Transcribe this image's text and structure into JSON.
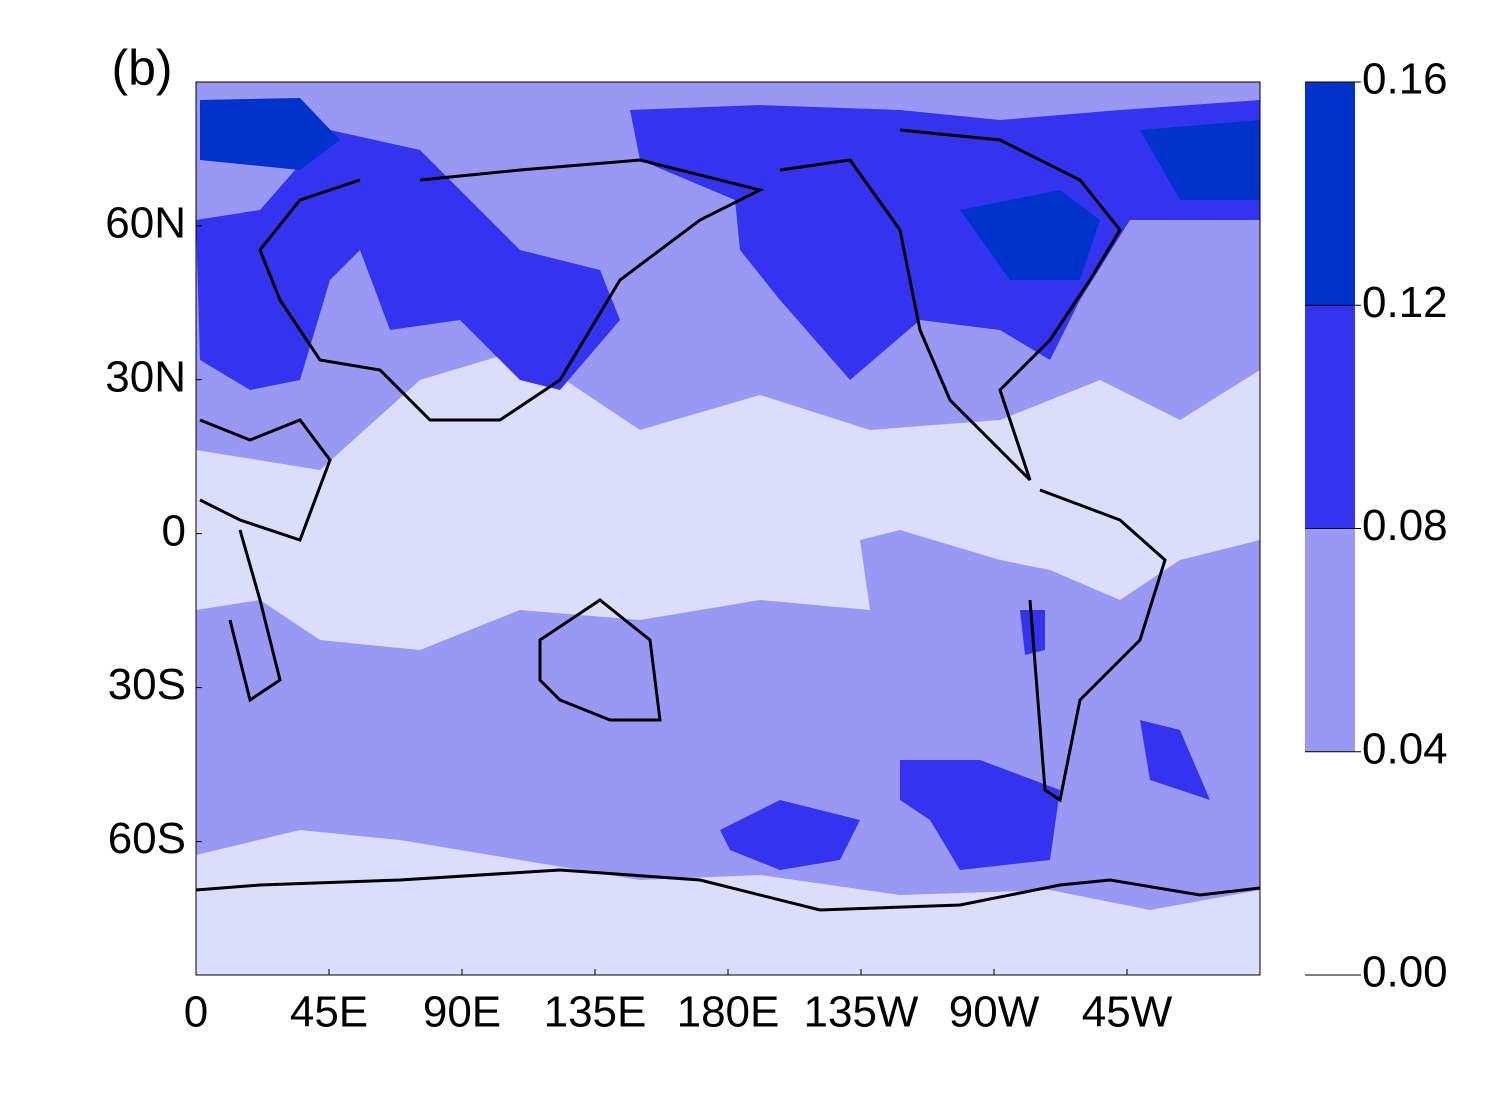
{
  "panel_label": "(b)",
  "chart_data": {
    "type": "contour-map",
    "xlim": [
      0,
      360
    ],
    "ylim": [
      -86,
      88
    ],
    "xticks": [
      0,
      {
        "value": 45,
        "label": "45E"
      },
      {
        "value": 90,
        "label": "90E"
      },
      {
        "value": 135,
        "label": "135E"
      },
      {
        "value": 180,
        "label": "180E"
      },
      {
        "value": 225,
        "label": "135W"
      },
      {
        "value": 270,
        "label": "90W"
      },
      {
        "value": 315,
        "label": "45W"
      }
    ],
    "yticks": [
      {
        "value": 60,
        "label": "60N"
      },
      {
        "value": 30,
        "label": "30N"
      },
      0,
      {
        "value": -30,
        "label": "30S"
      },
      {
        "value": -60,
        "label": "60S"
      }
    ],
    "colorbar": {
      "levels": [
        {
          "value": 0,
          "label": "0.00"
        },
        {
          "value": 0.04,
          "label": "0.04"
        },
        {
          "value": 0.08,
          "label": "0.08"
        },
        {
          "value": 0.12,
          "label": "0.12"
        },
        {
          "value": 0.16,
          "label": "0.16"
        }
      ],
      "colors": [
        "#ffffff",
        "#9999f5",
        "#3333f0",
        "#0033cc"
      ]
    }
  }
}
